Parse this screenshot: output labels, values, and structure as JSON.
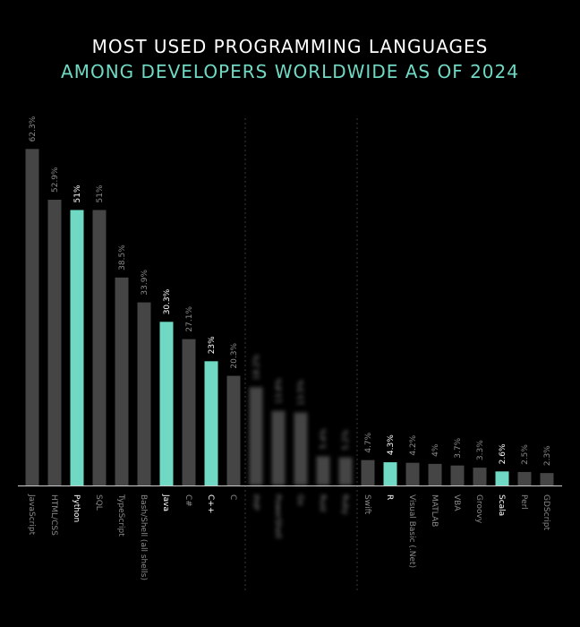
{
  "colors": {
    "background": "#000000",
    "title_line_1": "#ffffff",
    "title_line_2": "#6fd9c4",
    "bar_default": "#454545",
    "bar_highlight": "#6fd9c4",
    "label_default": "#8a8a8a",
    "label_highlight": "#ffffff",
    "divider": "#3a3a3a"
  },
  "chart_data": {
    "type": "bar",
    "title": "MOST USED PROGRAMMING LANGUAGES",
    "subtitle": "AMONG DEVELOPERS WORLDWIDE AS OF 2024",
    "xlabel": "",
    "ylabel": "",
    "ylim": [
      0,
      65
    ],
    "grid": false,
    "categories": [
      "JavaScript",
      "HTML/CSS",
      "Python",
      "SQL",
      "TypeScript",
      "Bash/Shell (all shells)",
      "Java",
      "C#",
      "C++",
      "C",
      "PHP",
      "PowerShell",
      "Go",
      "Rust",
      "Ruby",
      "Swift",
      "R",
      "Visual Basic (.Net)",
      "MATLAB",
      "VBA",
      "Groovy",
      "Scala",
      "Perl",
      "GDScript"
    ],
    "values": [
      62.3,
      52.9,
      51,
      51,
      38.5,
      33.9,
      30.3,
      27.1,
      23,
      20.3,
      18.2,
      13.8,
      13.5,
      5.4,
      5.2,
      4.7,
      4.3,
      4.2,
      4,
      3.7,
      3.3,
      2.6,
      2.5,
      2.3
    ],
    "value_labels": [
      "62.3%",
      "52.9%",
      "51%",
      "51%",
      "38.5%",
      "33.9%",
      "30.3%",
      "27.1%",
      "23%",
      "20.3%",
      "18.2%",
      "13.8%",
      "13.5%",
      "5.4%",
      "5.2%",
      "4.7%",
      "4.3%",
      "4.2%",
      "4%",
      "3.7%",
      "3.3%",
      "2.6%",
      "2.5%",
      "2.3%"
    ],
    "highlighted": [
      "Python",
      "Java",
      "C++",
      "R",
      "Scala"
    ],
    "blurred": [
      "PHP",
      "PowerShell",
      "Go",
      "Rust",
      "Ruby"
    ]
  }
}
